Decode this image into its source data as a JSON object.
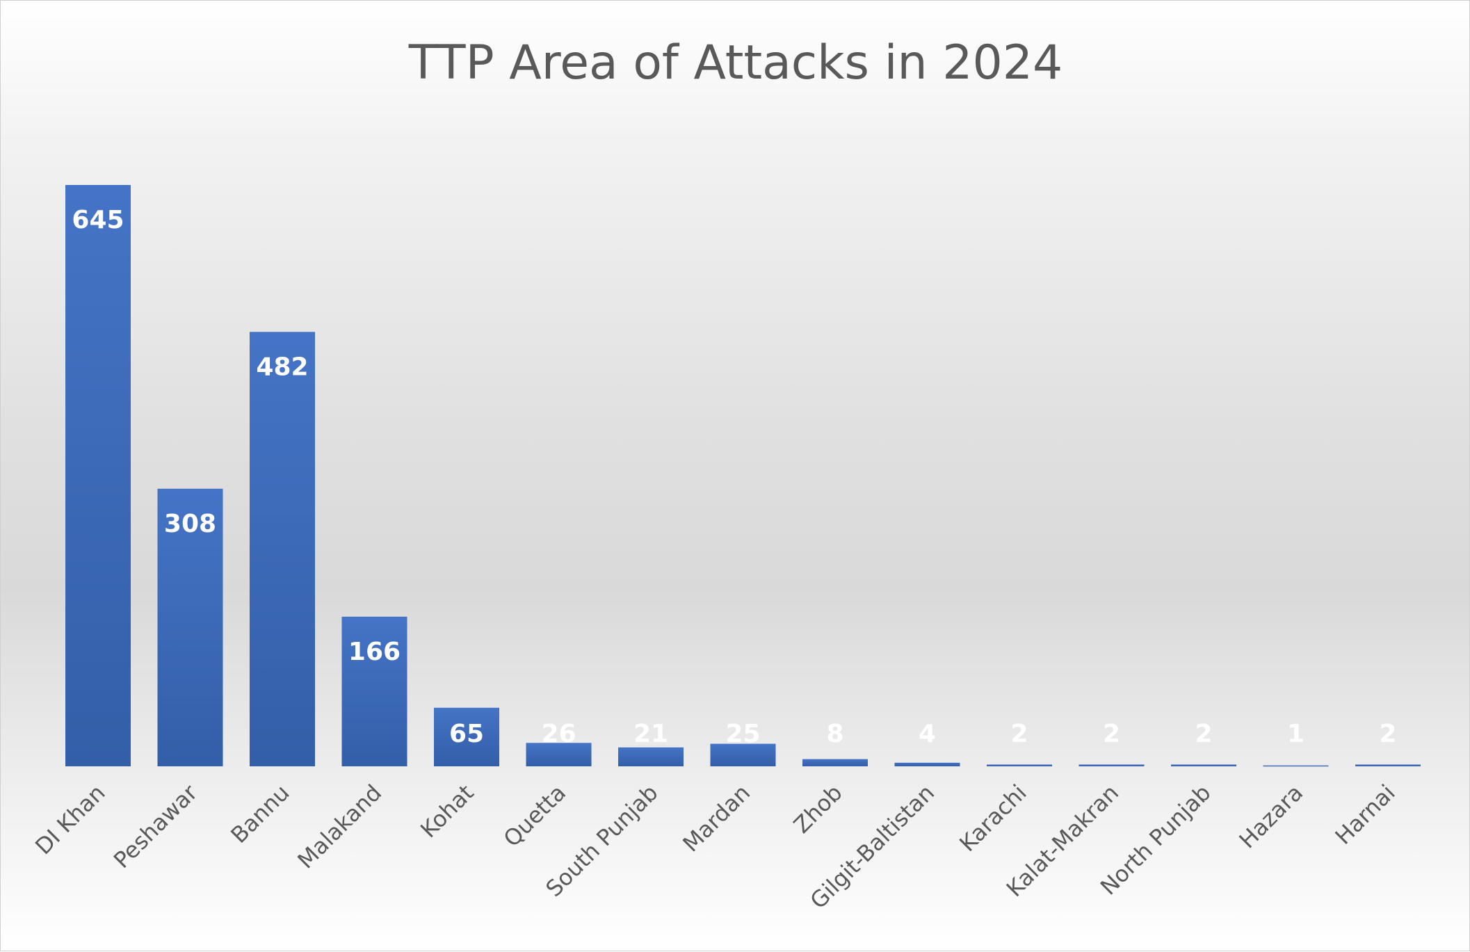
{
  "chart_data": {
    "type": "bar",
    "title": "TTP Area of Attacks in 2024",
    "xlabel": "",
    "ylabel": "",
    "categories": [
      "DI Khan",
      "Peshawar",
      "Bannu",
      "Malakand",
      "Kohat",
      "Quetta",
      "South Punjab",
      "Mardan",
      "Zhob",
      "Gilgit-Baltistan",
      "Karachi",
      "Kalat-Makran",
      "North Punjab",
      "Hazara",
      "Harnai"
    ],
    "values": [
      645,
      308,
      482,
      166,
      65,
      26,
      21,
      25,
      8,
      4,
      2,
      2,
      2,
      1,
      2
    ],
    "ylim": [
      0,
      700
    ],
    "grid": false,
    "legend": "none",
    "data_labels": true,
    "bar_color": "#4472c4",
    "bar_color_dark": "#3460aa"
  }
}
